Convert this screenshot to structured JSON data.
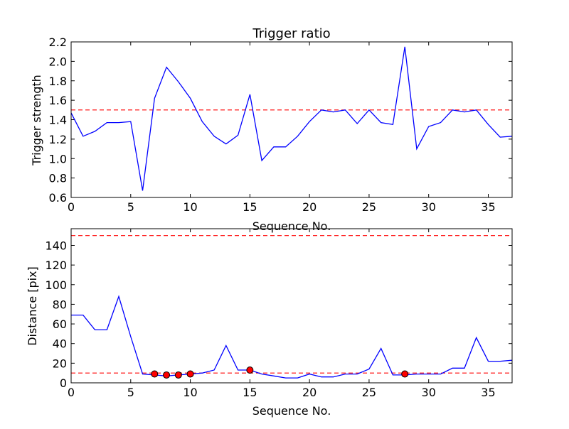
{
  "chart_data": [
    {
      "type": "line",
      "title": "Trigger ratio",
      "xlabel": "Sequence No.",
      "ylabel": "Trigger strength",
      "xlim": [
        0,
        37
      ],
      "ylim": [
        0.6,
        2.2
      ],
      "xticks": [
        0,
        5,
        10,
        15,
        20,
        25,
        30,
        35
      ],
      "yticks": [
        0.6,
        0.8,
        1.0,
        1.2,
        1.4,
        1.6,
        1.8,
        2.0,
        2.2
      ],
      "series": [
        {
          "color": "#0000ff",
          "x": [
            0,
            1,
            2,
            3,
            4,
            5,
            6,
            7,
            8,
            9,
            10,
            11,
            12,
            13,
            14,
            15,
            16,
            17,
            18,
            19,
            20,
            21,
            22,
            23,
            24,
            25,
            26,
            27,
            28,
            29,
            30,
            31,
            32,
            33,
            34,
            35,
            36,
            37
          ],
          "y": [
            1.47,
            1.23,
            1.28,
            1.37,
            1.37,
            1.38,
            0.67,
            1.62,
            1.94,
            1.79,
            1.62,
            1.38,
            1.23,
            1.15,
            1.24,
            1.66,
            0.98,
            1.12,
            1.12,
            1.23,
            1.38,
            1.5,
            1.48,
            1.5,
            1.36,
            1.5,
            1.37,
            1.35,
            2.15,
            1.1,
            1.33,
            1.37,
            1.5,
            1.48,
            1.5,
            1.35,
            1.22,
            1.23
          ]
        }
      ],
      "reference_lines": [
        {
          "y": 1.5,
          "color": "#ff0000",
          "style": "dashed"
        }
      ],
      "grid": false
    },
    {
      "type": "line",
      "title": "",
      "xlabel": "Sequence No.",
      "ylabel": "Distance [pix]",
      "xlim": [
        0,
        37
      ],
      "ylim": [
        0,
        157
      ],
      "xticks": [
        0,
        5,
        10,
        15,
        20,
        25,
        30,
        35
      ],
      "yticks": [
        0,
        20,
        40,
        60,
        80,
        100,
        120,
        140
      ],
      "series": [
        {
          "color": "#0000ff",
          "x": [
            0,
            1,
            2,
            3,
            4,
            5,
            6,
            7,
            8,
            9,
            10,
            11,
            12,
            13,
            14,
            15,
            16,
            17,
            18,
            19,
            20,
            21,
            22,
            23,
            24,
            25,
            26,
            27,
            28,
            29,
            30,
            31,
            32,
            33,
            34,
            35,
            36,
            37
          ],
          "y": [
            69,
            69,
            54,
            54,
            88,
            47,
            9,
            8,
            7,
            8,
            9,
            10,
            13,
            38,
            13,
            13,
            9,
            7,
            5,
            5,
            9,
            6,
            6,
            9,
            9,
            14,
            35,
            8,
            8,
            9,
            9,
            9,
            15,
            15,
            46,
            22,
            22,
            23
          ]
        }
      ],
      "markers": {
        "color": "#ff0000",
        "points": [
          {
            "x": 7,
            "y": 9
          },
          {
            "x": 8,
            "y": 8
          },
          {
            "x": 9,
            "y": 8
          },
          {
            "x": 10,
            "y": 9
          },
          {
            "x": 15,
            "y": 13
          },
          {
            "x": 28,
            "y": 9
          }
        ]
      },
      "reference_lines": [
        {
          "y": 150,
          "color": "#ff0000",
          "style": "dashed"
        },
        {
          "y": 10,
          "color": "#ff0000",
          "style": "dashed"
        }
      ],
      "grid": false
    }
  ]
}
